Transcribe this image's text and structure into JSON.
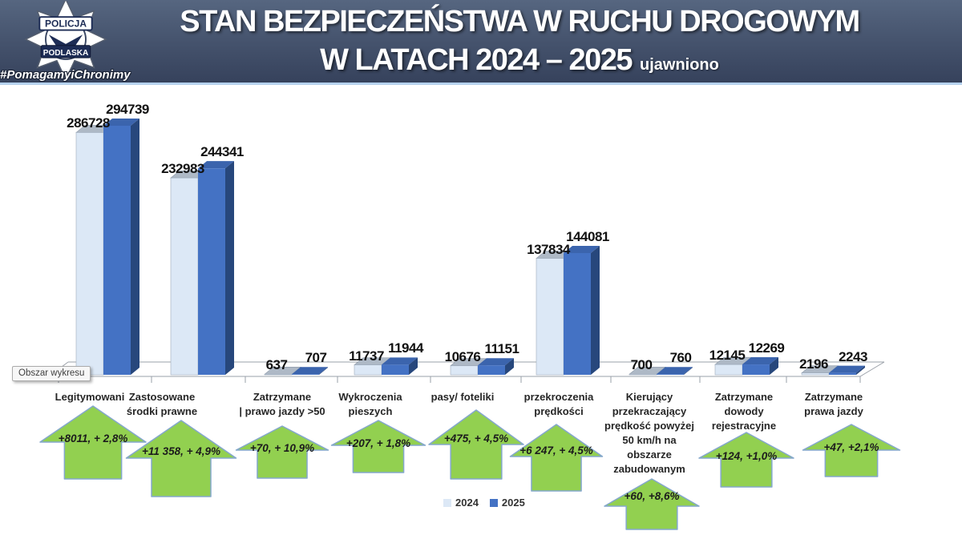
{
  "header": {
    "hashtag": "#PomagamyiChronimy",
    "logo_top": "POLICJA",
    "logo_bottom": "PODLASKA",
    "title_line1": "STAN BEZPIECZEŃSTWA W RUCHU DROGOWYM",
    "title_line2": "W LATACH 2024 – 2025",
    "title_suffix": "ujawniono"
  },
  "chart_tooltip": "Obszar wykresu",
  "legend": [
    {
      "label": "2024",
      "color": "#dce8f6"
    },
    {
      "label": "2025",
      "color": "#4472c4"
    }
  ],
  "colors": {
    "bar2024_front": "#dce8f6",
    "bar2024_top": "#aeb9c6",
    "bar2024_side": "#c3cfdd",
    "bar2025_front": "#4472c4",
    "bar2025_top": "#3b64ad",
    "bar2025_side": "#27477c",
    "arrow_fill": "#92d050",
    "arrow_stroke": "#84a7cc",
    "axis_line": "#9aa0a8"
  },
  "chart_data": {
    "type": "bar",
    "title": "STAN BEZPIECZEŃSTWA W RUCHU DROGOWYM W LATACH 2024 – 2025 ujawniono",
    "categories": [
      "Legitymowani",
      "Zastosowane\nśrodki prawne",
      "Zatrzymane\n| prawo jazdy >50",
      "Wykroczenia\npieszych",
      "pasy/ foteliki",
      "przekroczenia\nprędkości",
      "Kierujący\nprzekraczający\nprędkość powyżej\n50 km/h na\nobszarze\nzabudowanym",
      "Zatrzymane\ndowody\nrejestracyjne",
      "Zatrzymane\nprawa jazdy"
    ],
    "series": [
      {
        "name": "2024",
        "values": [
          286728,
          232983,
          637,
          11737,
          10676,
          137834,
          700,
          12145,
          2196
        ]
      },
      {
        "name": "2025",
        "values": [
          294739,
          244341,
          707,
          11944,
          11151,
          144081,
          760,
          12269,
          2243
        ]
      }
    ],
    "annotations": [
      "+8011, + 2,8%",
      "+11 358, + 4,9%",
      "+70, + 10,9%",
      "+207, + 1,8%",
      "+475, + 4,5%",
      "+6 247, + 4,5%",
      "+60, +8,6%",
      "+124, +1,0%",
      "+47, +2,1%"
    ],
    "ylim": [
      0,
      300000
    ],
    "grid": false,
    "legend_position": "bottom"
  }
}
